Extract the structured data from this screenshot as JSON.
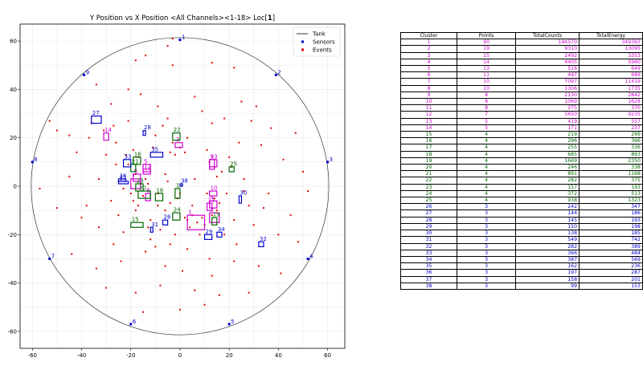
{
  "chart_data": {
    "type": "scatter",
    "title": "Y Position vs X Position <All Channels><1-18> Loc[",
    "title_bold": "1",
    "title_end": "]",
    "xlim": [
      -65,
      67
    ],
    "ylim": [
      -67,
      67
    ],
    "xticks": [
      -60,
      -40,
      -20,
      0,
      20,
      40,
      60
    ],
    "yticks": [
      -60,
      -40,
      -20,
      0,
      20,
      40,
      60
    ],
    "grid": true,
    "legend_position": "top-right",
    "legend": [
      {
        "label": "Tank",
        "style": "line",
        "color": "#000000"
      },
      {
        "label": "Sensors",
        "style": "marker",
        "color": "#0000cc"
      },
      {
        "label": "Events",
        "style": "marker",
        "color": "#e00000"
      }
    ],
    "tank": {
      "radius": 60.5
    },
    "sensors": [
      {
        "id": "1",
        "x": 0,
        "y": 60.5
      },
      {
        "id": "2",
        "x": 39,
        "y": 46
      },
      {
        "id": "3",
        "x": 60,
        "y": 10
      },
      {
        "id": "4",
        "x": 52,
        "y": -30
      },
      {
        "id": "5",
        "x": 20,
        "y": -57
      },
      {
        "id": "6",
        "x": -20,
        "y": -57
      },
      {
        "id": "7",
        "x": -53,
        "y": -30
      },
      {
        "id": "8",
        "x": -60,
        "y": 10
      },
      {
        "id": "9",
        "x": -39,
        "y": 46
      }
    ],
    "events": [
      [
        -3,
        61
      ],
      [
        -5,
        58
      ],
      [
        -14,
        54
      ],
      [
        -18,
        52
      ],
      [
        -3,
        50
      ],
      [
        13,
        51
      ],
      [
        22,
        49
      ],
      [
        -34,
        42
      ],
      [
        -21,
        40
      ],
      [
        -16,
        38
      ],
      [
        6,
        37
      ],
      [
        25,
        35
      ],
      [
        31,
        33
      ],
      [
        -28,
        34
      ],
      [
        -9,
        33
      ],
      [
        9,
        31
      ],
      [
        -53,
        27
      ],
      [
        -50,
        23
      ],
      [
        -45,
        21
      ],
      [
        -37,
        20
      ],
      [
        -27,
        25
      ],
      [
        -21,
        27
      ],
      [
        -5,
        28
      ],
      [
        13,
        26
      ],
      [
        18,
        28
      ],
      [
        29,
        27
      ],
      [
        37,
        24
      ],
      [
        47,
        22
      ],
      [
        -42,
        14
      ],
      [
        -30,
        13
      ],
      [
        -26,
        9
      ],
      [
        -11,
        16
      ],
      [
        -4,
        14
      ],
      [
        3,
        20
      ],
      [
        11,
        15
      ],
      [
        24,
        18
      ],
      [
        33,
        17
      ],
      [
        42,
        11
      ],
      [
        50,
        6
      ],
      [
        52,
        -2
      ],
      [
        -57,
        -1
      ],
      [
        -45,
        4
      ],
      [
        -33,
        3
      ],
      [
        -23,
        -1
      ],
      [
        -13,
        1
      ],
      [
        -5,
        2
      ],
      [
        6,
        3
      ],
      [
        15,
        4
      ],
      [
        26,
        3
      ],
      [
        36,
        -3
      ],
      [
        45,
        -12
      ],
      [
        -50,
        -9
      ],
      [
        -40,
        -13
      ],
      [
        -33,
        -17
      ],
      [
        -27,
        -24
      ],
      [
        -18,
        -10
      ],
      [
        -9,
        -8
      ],
      [
        5,
        -8
      ],
      [
        13,
        -12
      ],
      [
        22,
        -14
      ],
      [
        30,
        -16
      ],
      [
        40,
        -20
      ],
      [
        48,
        -23
      ],
      [
        -44,
        -28
      ],
      [
        -34,
        -34
      ],
      [
        -24,
        -31
      ],
      [
        -14,
        -27
      ],
      [
        -6,
        -33
      ],
      [
        3,
        -26
      ],
      [
        12,
        -30
      ],
      [
        22,
        -31
      ],
      [
        32,
        -33
      ],
      [
        41,
        -36
      ],
      [
        -30,
        -42
      ],
      [
        -18,
        -44
      ],
      [
        -8,
        -41
      ],
      [
        6,
        -43
      ],
      [
        16,
        -45
      ],
      [
        28,
        -44
      ],
      [
        -15,
        -52
      ],
      [
        0,
        -51
      ],
      [
        10,
        -49
      ],
      [
        -4,
        -24
      ],
      [
        -8,
        -18
      ],
      [
        -2,
        -20
      ],
      [
        3,
        -14
      ],
      [
        7,
        -15
      ],
      [
        5,
        -12
      ],
      [
        8,
        -20
      ],
      [
        10,
        -16
      ],
      [
        4,
        -17
      ],
      [
        2,
        -13
      ],
      [
        9,
        -13
      ],
      [
        15,
        -10
      ],
      [
        16,
        -7
      ],
      [
        14,
        -5
      ],
      [
        -20,
        -3
      ],
      [
        -19,
        -6
      ],
      [
        -17,
        -8
      ],
      [
        -15,
        -4
      ],
      [
        -16,
        1
      ],
      [
        -14,
        3
      ],
      [
        -18,
        5
      ],
      [
        -17,
        12
      ],
      [
        -19,
        15
      ],
      [
        -21,
        9
      ],
      [
        -22,
        13
      ],
      [
        -10,
        21
      ],
      [
        -3,
        18
      ],
      [
        0,
        16
      ],
      [
        2,
        14
      ],
      [
        -2,
        13
      ],
      [
        12,
        10
      ],
      [
        14,
        8
      ],
      [
        17,
        6
      ],
      [
        20,
        12
      ],
      [
        21,
        8
      ],
      [
        -1,
        -5
      ],
      [
        -4,
        -7
      ],
      [
        -6,
        -10
      ],
      [
        -12,
        -14
      ],
      [
        -13,
        -17
      ],
      [
        -23,
        -19
      ],
      [
        -25,
        -12
      ],
      [
        -9,
        -3
      ],
      [
        26,
        -2
      ],
      [
        28,
        -8
      ],
      [
        -31,
        23
      ],
      [
        -36,
        26
      ],
      [
        -26,
        18
      ],
      [
        -12,
        -22
      ],
      [
        0,
        -3
      ],
      [
        -6,
        5
      ],
      [
        11,
        -3
      ],
      [
        18,
        -20
      ],
      [
        23,
        -24
      ],
      [
        -10,
        -25
      ],
      [
        1,
        -35
      ],
      [
        13,
        -37
      ],
      [
        -38,
        -8
      ],
      [
        19,
        -3
      ],
      [
        -7,
        25
      ],
      [
        -28,
        -6
      ],
      [
        34,
        -9
      ]
    ],
    "clusters": [
      {
        "id": "1",
        "x0": 3,
        "x1": 10,
        "y0": -18,
        "y1": -12,
        "color": "#cc00cc"
      },
      {
        "id": "2",
        "x0": 12,
        "x1": 16,
        "y0": -15,
        "y1": -11,
        "color": "#cc00cc"
      },
      {
        "id": "3",
        "x0": -2,
        "x1": 1,
        "y0": 16,
        "y1": 18,
        "color": "#cc00cc"
      },
      {
        "id": "4",
        "x0": 12,
        "x1": 15,
        "y0": -9,
        "y1": -6,
        "color": "#cc00cc"
      },
      {
        "id": "5",
        "x0": -15,
        "x1": -12,
        "y0": 6,
        "y1": 9,
        "color": "#cc00cc"
      },
      {
        "id": "6",
        "x0": -19,
        "x1": -16,
        "y0": 2,
        "y1": 5,
        "color": "#cc00cc"
      },
      {
        "id": "7",
        "x0": -20,
        "x1": -16,
        "y0": -1,
        "y1": 3,
        "color": "#cc00cc"
      },
      {
        "id": "8",
        "x0": -14,
        "x1": -12,
        "y0": -6,
        "y1": -3,
        "color": "#cc00cc"
      },
      {
        "id": "9",
        "x0": 12,
        "x1": 15,
        "y0": 8,
        "y1": 11,
        "color": "#cc00cc"
      },
      {
        "id": "10",
        "x0": 12,
        "x1": 15,
        "y0": -4,
        "y1": -2,
        "color": "#cc00cc"
      },
      {
        "id": "11",
        "x0": 11,
        "x1": 13,
        "y0": -10,
        "y1": -7,
        "color": "#cc00cc"
      },
      {
        "id": "12",
        "x0": -15,
        "x1": -12,
        "y0": 5,
        "y1": 7,
        "color": "#cc00cc"
      },
      {
        "id": "13",
        "x0": 12,
        "x1": 14,
        "y0": 7,
        "y1": 11,
        "color": "#cc00cc"
      },
      {
        "id": "14",
        "x0": -31,
        "x1": -29,
        "y0": 19,
        "y1": 22,
        "color": "#cc00cc"
      },
      {
        "id": "15",
        "x0": -20,
        "x1": -15,
        "y0": -17,
        "y1": -15,
        "color": "#006600"
      },
      {
        "id": "16",
        "x0": -19,
        "x1": -16,
        "y0": 9,
        "y1": 12,
        "color": "#006600"
      },
      {
        "id": "17",
        "x0": -2,
        "x1": 0,
        "y0": -5,
        "y1": -1,
        "color": "#006600"
      },
      {
        "id": "18",
        "x0": -10,
        "x1": -7,
        "y0": -6,
        "y1": -3,
        "color": "#006600"
      },
      {
        "id": "19",
        "x0": 13,
        "x1": 15,
        "y0": -16,
        "y1": -13,
        "color": "#006600"
      },
      {
        "id": "20",
        "x0": -17,
        "x1": -12,
        "y0": -5,
        "y1": -2,
        "color": "#006600"
      },
      {
        "id": "21",
        "x0": -20,
        "x1": -18,
        "y0": 6,
        "y1": 9,
        "color": "#006600"
      },
      {
        "id": "22",
        "x0": -3,
        "x1": 0,
        "y0": 19,
        "y1": 22,
        "color": "#006600"
      },
      {
        "id": "23",
        "x0": -18,
        "x1": -15,
        "y0": -2,
        "y1": 1,
        "color": "#006600"
      },
      {
        "id": "24",
        "x0": -3,
        "x1": 0,
        "y0": -14,
        "y1": -11,
        "color": "#006600"
      },
      {
        "id": "25",
        "x0": 20,
        "x1": 22,
        "y0": 6,
        "y1": 8,
        "color": "#006600"
      },
      {
        "id": "26",
        "x0": -7,
        "x1": -5,
        "y0": -16,
        "y1": -14,
        "color": "#0000cc"
      },
      {
        "id": "27",
        "x0": -36,
        "x1": -32,
        "y0": 26,
        "y1": 29,
        "color": "#0000cc"
      },
      {
        "id": "28",
        "x0": -15,
        "x1": -14,
        "y0": 21,
        "y1": 23,
        "color": "#0000cc"
      },
      {
        "id": "29",
        "x0": 10,
        "x1": 13,
        "y0": -22,
        "y1": -20,
        "color": "#0000cc"
      },
      {
        "id": "30",
        "x0": 24,
        "x1": 25,
        "y0": -7,
        "y1": -4,
        "color": "#0000cc"
      },
      {
        "id": "31",
        "x0": -12,
        "x1": -11,
        "y0": -19,
        "y1": -17,
        "color": "#0000cc"
      },
      {
        "id": "32",
        "x0": 32,
        "x1": 34,
        "y0": -25,
        "y1": -23,
        "color": "#0000cc"
      },
      {
        "id": "33",
        "x0": -23,
        "x1": -20,
        "y0": 8,
        "y1": 11,
        "color": "#0000cc"
      },
      {
        "id": "34",
        "x0": 15,
        "x1": 17,
        "y0": -21,
        "y1": -19,
        "color": "#0000cc"
      },
      {
        "id": "35",
        "x0": -12,
        "x1": -7,
        "y0": 12,
        "y1": 14,
        "color": "#0000cc"
      },
      {
        "id": "36",
        "x0": -25,
        "x1": -22,
        "y0": 2,
        "y1": 3,
        "color": "#0000cc"
      },
      {
        "id": "37",
        "x0": -25,
        "x1": -21,
        "y0": 1,
        "y1": 2,
        "color": "#0000cc"
      },
      {
        "id": "38",
        "x0": 0,
        "x1": 1,
        "y0": 0,
        "y1": 1,
        "color": "#0000cc"
      }
    ]
  },
  "table": {
    "headers": [
      "Cluster",
      "Points",
      "TotalCounts",
      "TotalEnergy"
    ],
    "rows": [
      [
        "1",
        "90",
        "194570",
        "349393",
        "#cc00cc"
      ],
      [
        "2",
        "19",
        "9310",
        "13095",
        "#cc00cc"
      ],
      [
        "3",
        "15",
        "2492",
        "3353",
        "#cc00cc"
      ],
      [
        "4",
        "14",
        "4405",
        "5960",
        "#cc00cc"
      ],
      [
        "5",
        "13",
        "516",
        "649",
        "#cc00cc"
      ],
      [
        "6",
        "11",
        "497",
        "689",
        "#cc00cc"
      ],
      [
        "7",
        "10",
        "7097",
        "11419",
        "#cc00cc"
      ],
      [
        "8",
        "10",
        "1306",
        "1735",
        "#cc00cc"
      ],
      [
        "9",
        "8",
        "2130",
        "2842",
        "#cc00cc"
      ],
      [
        "10",
        "8",
        "1069",
        "1628",
        "#cc00cc"
      ],
      [
        "11",
        "8",
        "275",
        "370",
        "#cc00cc"
      ],
      [
        "12",
        "7",
        "5650",
        "9235",
        "#cc00cc"
      ],
      [
        "13",
        "5",
        "419",
        "557",
        "#cc00cc"
      ],
      [
        "14",
        "5",
        "171",
        "237",
        "#cc00cc"
      ],
      [
        "15",
        "4",
        "219",
        "299",
        "#006600"
      ],
      [
        "16",
        "4",
        "296",
        "366",
        "#006600"
      ],
      [
        "17",
        "4",
        "255",
        "336",
        "#006600"
      ],
      [
        "18",
        "4",
        "685",
        "893",
        "#006600"
      ],
      [
        "19",
        "4",
        "1669",
        "2350",
        "#006600"
      ],
      [
        "20",
        "4",
        "246",
        "338",
        "#006600"
      ],
      [
        "21",
        "4",
        "891",
        "1168",
        "#006600"
      ],
      [
        "22",
        "4",
        "282",
        "375",
        "#006600"
      ],
      [
        "23",
        "4",
        "157",
        "193",
        "#006600"
      ],
      [
        "24",
        "4",
        "372",
        "513",
        "#006600"
      ],
      [
        "25",
        "4",
        "938",
        "1323",
        "#006600"
      ],
      [
        "26",
        "3",
        "242",
        "347",
        "#0000cc"
      ],
      [
        "27",
        "3",
        "144",
        "186",
        "#0000cc"
      ],
      [
        "28",
        "3",
        "145",
        "193",
        "#0000cc"
      ],
      [
        "29",
        "3",
        "150",
        "198",
        "#0000cc"
      ],
      [
        "30",
        "3",
        "138",
        "185",
        "#0000cc"
      ],
      [
        "31",
        "3",
        "549",
        "742",
        "#0000cc"
      ],
      [
        "32",
        "3",
        "282",
        "389",
        "#0000cc"
      ],
      [
        "33",
        "3",
        "366",
        "484",
        "#0000cc"
      ],
      [
        "34",
        "3",
        "387",
        "569",
        "#0000cc"
      ],
      [
        "35",
        "3",
        "162",
        "236",
        "#0000cc"
      ],
      [
        "36",
        "3",
        "197",
        "287",
        "#0000cc"
      ],
      [
        "37",
        "3",
        "158",
        "201",
        "#0000cc"
      ],
      [
        "38",
        "3",
        "99",
        "153",
        "#0000cc"
      ]
    ]
  }
}
